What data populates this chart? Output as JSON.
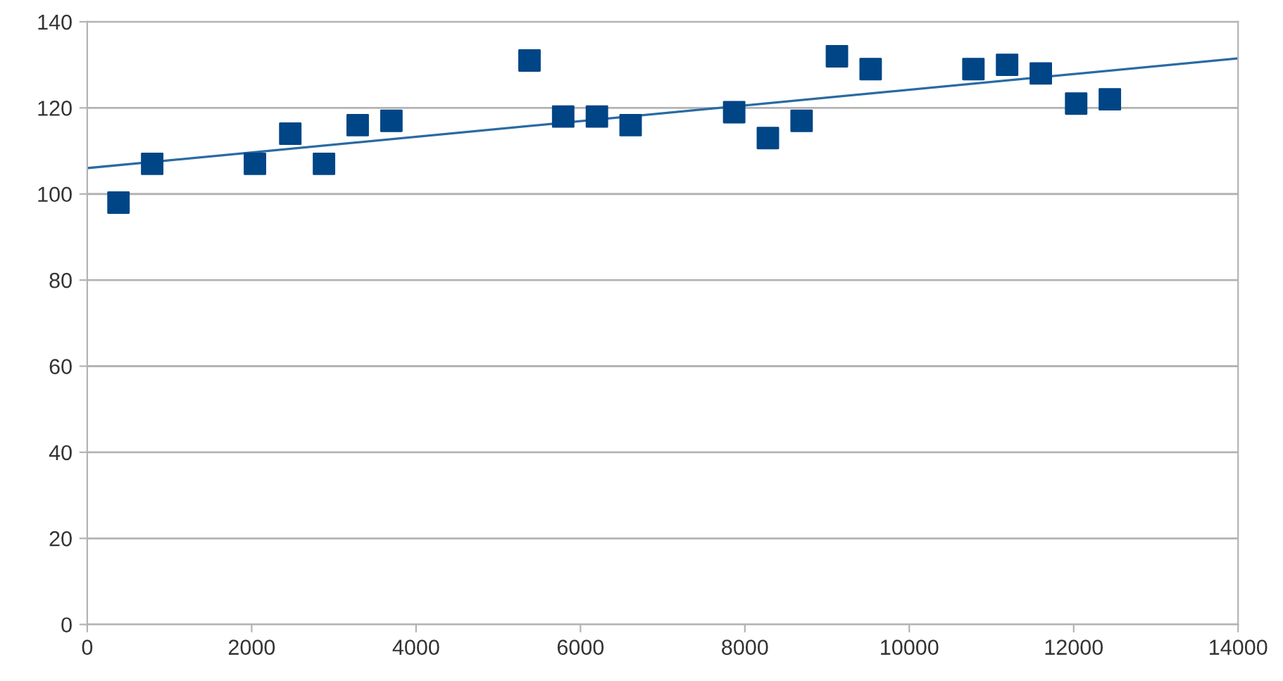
{
  "chart_data": {
    "type": "scatter",
    "grid": "y",
    "legend": false,
    "xlim": [
      0,
      14000
    ],
    "xticks": [
      0,
      2000,
      4000,
      6000,
      8000,
      10000,
      12000,
      14000
    ],
    "ylim": [
      0,
      140
    ],
    "yticks": [
      0,
      20,
      40,
      60,
      80,
      100,
      120,
      140
    ],
    "series": [
      {
        "marker": "square",
        "color": "#004586",
        "x": [
          380,
          790,
          2040,
          2470,
          2880,
          3290,
          3700,
          5380,
          5790,
          6200,
          6610,
          7870,
          8280,
          8690,
          9120,
          9530,
          10780,
          11190,
          11600,
          12030,
          12440
        ],
        "values": [
          98,
          107,
          107,
          114,
          107,
          116,
          117,
          131,
          118,
          118,
          116,
          119,
          113,
          117,
          132,
          129,
          129,
          130,
          128,
          121,
          122
        ]
      },
      {
        "type": "line",
        "marker": "none",
        "color": "#2a6aa3",
        "x": [
          0,
          14000
        ],
        "values": [
          106,
          131.5
        ]
      }
    ]
  }
}
